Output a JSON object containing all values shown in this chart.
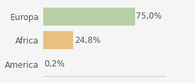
{
  "categories": [
    "America",
    "Africa",
    "Europa"
  ],
  "values": [
    0.2,
    24.8,
    75.0
  ],
  "bar_colors": [
    "#b8cfa8",
    "#e8c080",
    "#b8cfa8"
  ],
  "labels": [
    "0,2%",
    "24,8%",
    "75,0%"
  ],
  "background_color": "#f5f5f5",
  "xlim": [
    0,
    100
  ],
  "label_fontsize": 8.5,
  "tick_fontsize": 8.5,
  "bar_height": 0.75
}
